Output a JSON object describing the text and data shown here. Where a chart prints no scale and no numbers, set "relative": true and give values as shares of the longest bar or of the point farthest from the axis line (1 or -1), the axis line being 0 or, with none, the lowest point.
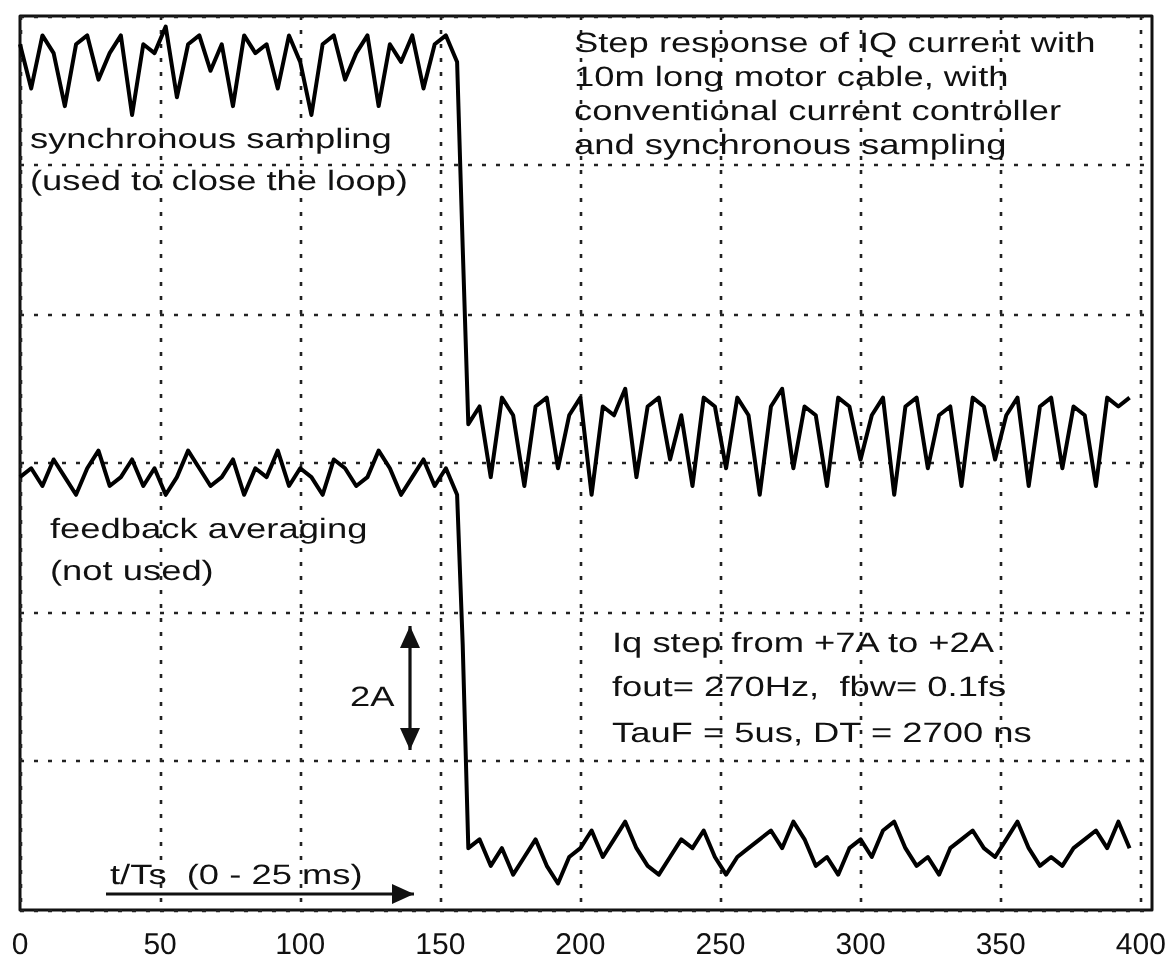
{
  "chart_data": {
    "type": "line",
    "title": "Step response of IQ current with 10m long motor cable, with conventional current controller and synchronous sampling",
    "xlabel": "t/Ts  (0 - 25 ms)",
    "annotations": [
      "Iq step from +7A to +2A",
      "fout= 270Hz,  fbw= 0.1fs",
      "TauF = 5us, DT = 2700 ns",
      "2A"
    ],
    "relative": true,
    "grid": true,
    "marker": "none",
    "xlim": [
      0,
      404
    ],
    "xticks": [
      0,
      50,
      100,
      150,
      200,
      250,
      300,
      350,
      400
    ],
    "x": [
      0,
      4,
      8,
      12,
      16,
      20,
      24,
      28,
      32,
      36,
      40,
      44,
      48,
      52,
      56,
      60,
      64,
      68,
      72,
      76,
      80,
      84,
      88,
      92,
      96,
      100,
      104,
      108,
      112,
      116,
      120,
      124,
      128,
      132,
      136,
      140,
      144,
      148,
      152,
      156,
      158,
      160,
      164,
      168,
      172,
      176,
      180,
      184,
      188,
      192,
      196,
      200,
      204,
      208,
      212,
      216,
      220,
      224,
      228,
      232,
      236,
      240,
      244,
      248,
      252,
      256,
      260,
      264,
      268,
      272,
      276,
      280,
      284,
      288,
      292,
      296,
      300,
      304,
      308,
      312,
      316,
      320,
      324,
      328,
      332,
      336,
      340,
      344,
      348,
      352,
      356,
      360,
      364,
      368,
      372,
      376,
      380,
      384,
      388,
      392,
      396
    ],
    "series": [
      {
        "name": "synchronous sampling\n(used to close the loop)",
        "color": "#000000",
        "values": [
          0.98,
          0.93,
          0.99,
          0.97,
          0.91,
          0.98,
          0.99,
          0.94,
          0.97,
          0.99,
          0.9,
          0.98,
          0.97,
          1.0,
          0.92,
          0.98,
          0.99,
          0.95,
          0.98,
          0.91,
          0.99,
          0.97,
          0.98,
          0.93,
          0.99,
          0.96,
          0.9,
          0.98,
          0.99,
          0.94,
          0.97,
          0.99,
          0.91,
          0.98,
          0.96,
          0.99,
          0.93,
          0.98,
          0.99,
          0.96,
          0.75,
          0.55,
          0.57,
          0.49,
          0.58,
          0.56,
          0.48,
          0.57,
          0.58,
          0.5,
          0.56,
          0.58,
          0.47,
          0.57,
          0.56,
          0.59,
          0.49,
          0.57,
          0.58,
          0.51,
          0.56,
          0.48,
          0.58,
          0.57,
          0.5,
          0.58,
          0.56,
          0.47,
          0.57,
          0.59,
          0.5,
          0.57,
          0.56,
          0.48,
          0.58,
          0.57,
          0.51,
          0.56,
          0.58,
          0.47,
          0.57,
          0.58,
          0.5,
          0.56,
          0.57,
          0.48,
          0.58,
          0.57,
          0.51,
          0.56,
          0.58,
          0.48,
          0.57,
          0.58,
          0.5,
          0.57,
          0.56,
          0.48,
          0.58,
          0.57,
          0.58
        ]
      },
      {
        "name": "feedback averaging\n(not used)",
        "color": "#000000",
        "values": [
          0.49,
          0.5,
          0.48,
          0.51,
          0.49,
          0.47,
          0.5,
          0.52,
          0.48,
          0.49,
          0.51,
          0.48,
          0.5,
          0.47,
          0.49,
          0.52,
          0.5,
          0.48,
          0.49,
          0.51,
          0.47,
          0.5,
          0.49,
          0.52,
          0.48,
          0.5,
          0.49,
          0.47,
          0.51,
          0.5,
          0.48,
          0.49,
          0.52,
          0.5,
          0.47,
          0.49,
          0.51,
          0.48,
          0.5,
          0.47,
          0.3,
          0.07,
          0.08,
          0.05,
          0.07,
          0.04,
          0.06,
          0.08,
          0.05,
          0.03,
          0.06,
          0.07,
          0.09,
          0.06,
          0.08,
          0.1,
          0.07,
          0.05,
          0.04,
          0.06,
          0.08,
          0.07,
          0.09,
          0.06,
          0.04,
          0.06,
          0.07,
          0.08,
          0.09,
          0.07,
          0.1,
          0.08,
          0.05,
          0.06,
          0.04,
          0.07,
          0.08,
          0.06,
          0.09,
          0.1,
          0.07,
          0.05,
          0.06,
          0.04,
          0.07,
          0.08,
          0.09,
          0.07,
          0.06,
          0.08,
          0.1,
          0.07,
          0.05,
          0.06,
          0.05,
          0.07,
          0.08,
          0.09,
          0.07,
          0.1,
          0.07
        ]
      }
    ]
  }
}
